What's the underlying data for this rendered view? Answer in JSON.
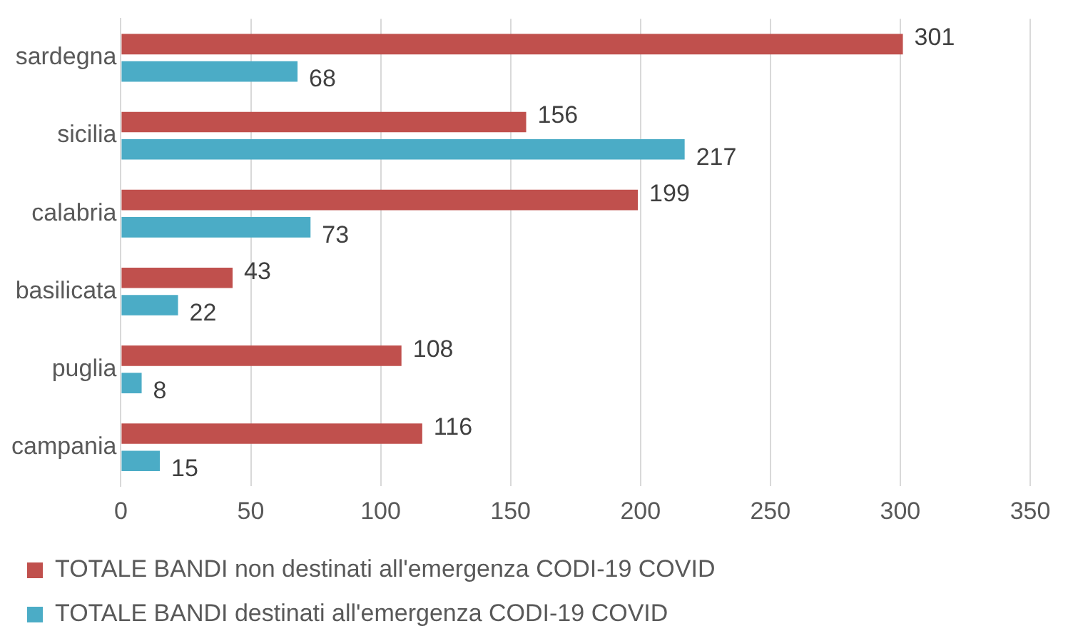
{
  "chart_data": {
    "type": "bar",
    "orientation": "horizontal",
    "categories": [
      "sardegna",
      "sicilia",
      "calabria",
      "basilicata",
      "puglia",
      "campania"
    ],
    "series": [
      {
        "name": "TOTALE BANDI non destinati all'emergenza CODI-19 COVID",
        "color": "#c0504d",
        "values": [
          301,
          156,
          199,
          43,
          108,
          116
        ]
      },
      {
        "name": "TOTALE BANDI destinati all'emergenza CODI-19 COVID",
        "color": "#4bacc6",
        "values": [
          68,
          217,
          73,
          22,
          8,
          15
        ]
      }
    ],
    "xlim": [
      0,
      350
    ],
    "xticks": [
      0,
      50,
      100,
      150,
      200,
      250,
      300,
      350
    ],
    "grid": "x",
    "legend": "bottom",
    "data_labels": true
  }
}
